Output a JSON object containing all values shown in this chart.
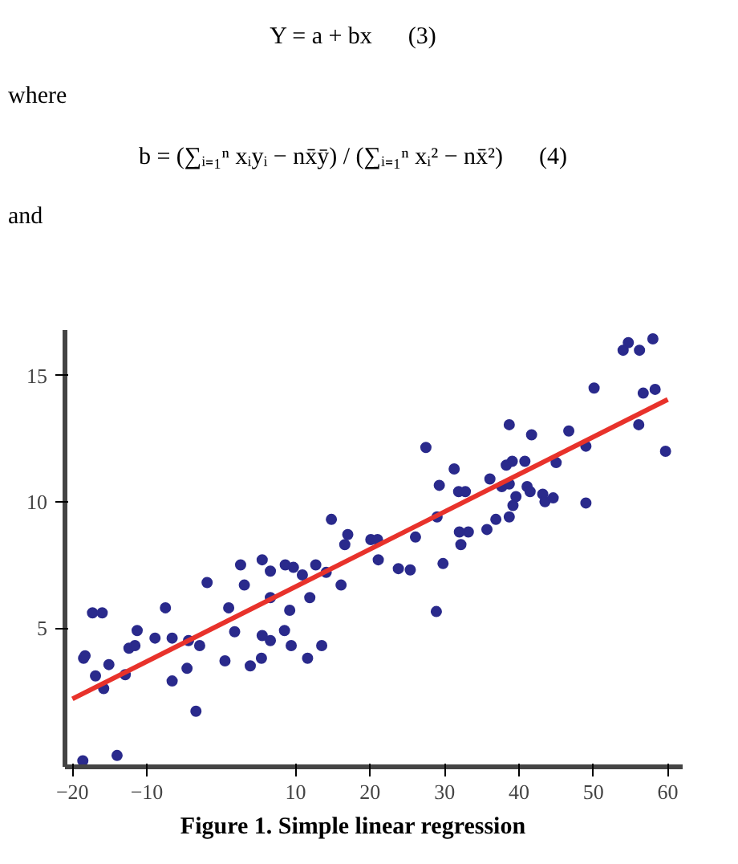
{
  "chart_data": {
    "type": "scatter",
    "annotations": [
      "Y = a + bx      (3)",
      "where",
      "b = (∑ᵢ₌₁ⁿ xᵢyᵢ − nx̄ȳ) / (∑ᵢ₌₁ⁿ xᵢ² − nx̄²)      (4)",
      "and",
      "Figure 1. Simple linear regression"
    ],
    "xlim": [
      -21,
      62
    ],
    "ylim": [
      -0.5,
      16.8
    ],
    "xticks": [
      -20,
      -10,
      10,
      20,
      30,
      40,
      50,
      60
    ],
    "yticks": [
      5,
      10,
      15
    ],
    "grid": false,
    "series": [
      {
        "marker": "circle",
        "color": "#2a2a8c",
        "x": [
          -18.5,
          -18.3,
          -17.3,
          -16.0,
          -16.9,
          -15.8,
          -15.1,
          -12.9,
          -12.4,
          -11.6,
          -11.3,
          -8.9,
          -7.5,
          -6.6,
          -6.6,
          -4.6,
          -4.4,
          -2.9,
          -3.4,
          -1.9,
          -18.6,
          -14.0,
          0.5,
          1.0,
          1.8,
          2.6,
          3.1,
          3.9,
          5.4,
          5.5,
          5.5,
          6.6,
          6.6,
          6.6,
          8.5,
          8.6,
          9.7,
          9.2,
          9.4,
          10.9,
          11.6,
          11.9,
          12.7,
          13.5,
          14.1,
          14.8,
          16.1,
          16.6,
          17.0,
          20.1,
          21.0,
          21.1,
          23.8,
          25.4,
          26.1,
          27.5,
          28.9,
          29.0,
          29.3,
          29.8,
          31.3,
          31.9,
          32.8,
          32.0,
          33.2,
          32.2,
          35.7,
          36.1,
          36.9,
          37.7,
          38.3,
          39.1,
          38.7,
          38.7,
          38.7,
          39.2,
          39.6,
          40.8,
          41.1,
          41.5,
          41.7,
          43.2,
          43.5,
          44.6,
          45.0,
          46.7,
          49.0,
          49.0,
          50.1,
          54.0,
          54.7,
          56.2,
          58.0,
          56.7,
          58.3,
          56.1,
          59.7
        ],
        "values": [
          3.8,
          3.9,
          5.6,
          5.6,
          3.1,
          2.6,
          3.55,
          3.15,
          4.2,
          4.3,
          4.9,
          4.6,
          5.8,
          4.6,
          2.9,
          3.4,
          4.5,
          4.3,
          1.7,
          6.8,
          -0.26,
          -0.05,
          3.7,
          5.8,
          4.85,
          7.5,
          6.7,
          3.5,
          3.8,
          7.7,
          4.7,
          4.5,
          7.25,
          6.2,
          4.9,
          7.5,
          7.4,
          5.7,
          4.3,
          7.1,
          3.8,
          6.2,
          7.5,
          4.3,
          7.2,
          9.3,
          6.7,
          8.3,
          8.7,
          8.5,
          8.5,
          7.7,
          7.35,
          7.3,
          8.6,
          12.15,
          5.65,
          9.4,
          10.65,
          7.55,
          11.3,
          10.4,
          10.4,
          8.8,
          8.8,
          8.3,
          8.9,
          10.9,
          9.3,
          10.6,
          11.45,
          11.6,
          13.05,
          10.7,
          9.4,
          9.85,
          10.2,
          11.6,
          10.6,
          10.4,
          12.65,
          10.3,
          10.0,
          10.15,
          11.55,
          12.8,
          12.2,
          9.95,
          14.5,
          16.0,
          16.3,
          16.0,
          16.45,
          14.3,
          14.45,
          13.05,
          12.0
        ]
      },
      {
        "type": "line",
        "marker": "none",
        "color": "#e8322b",
        "x": [
          -20,
          60
        ],
        "values": [
          2.19,
          14.05
        ]
      }
    ]
  }
}
